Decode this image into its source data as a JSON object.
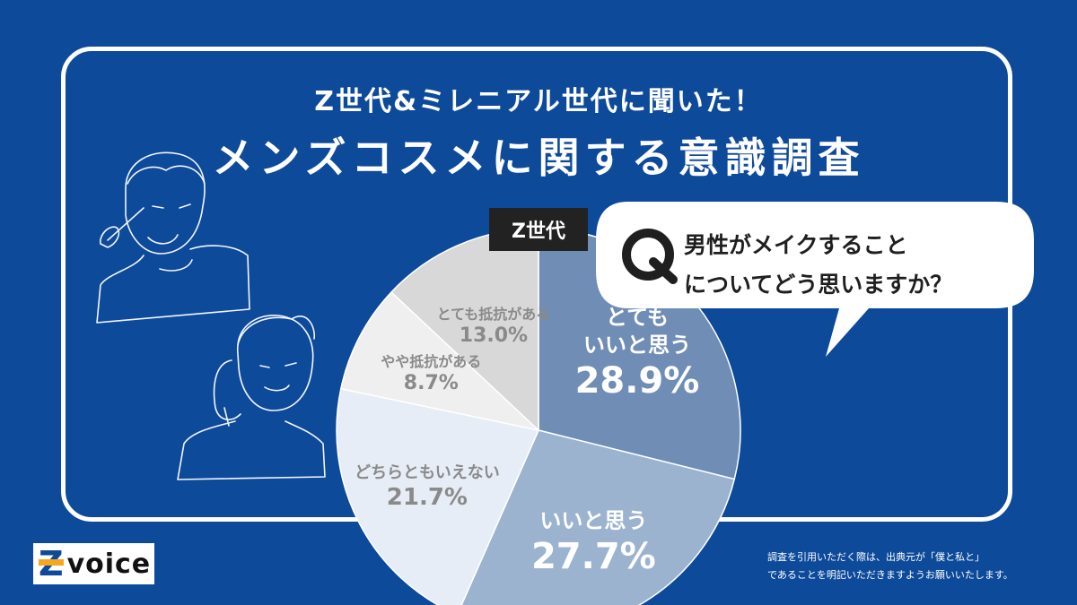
{
  "subtitle": "Z世代&ミレニアル世代に聞いた！",
  "title": "メンズコスメに関する意識調査",
  "tag": "Z世代",
  "question": {
    "mark": "Q",
    "line1": "男性がメイクすること",
    "line2": "についてどう思いますか？"
  },
  "logo": {
    "z": "Z",
    "word": "voice"
  },
  "note": {
    "line1": "調査を引用いただく際は、出典元が「僕と私と」",
    "line2": "であることを明記いただきますようお願いいたします。"
  },
  "colors": {
    "background": "#0d4a9a",
    "frame": "#ffffff",
    "slice_1": "#6f8db5",
    "slice_2": "#9bb3cf",
    "slice_3": "#e6edf6",
    "slice_4": "#efefef",
    "slice_5": "#d8d8d8"
  },
  "chart_data": {
    "type": "pie",
    "slices": [
      {
        "label_lines": [
          "とても",
          "いいと思う"
        ],
        "value": 28.9,
        "value_text": "28.9%"
      },
      {
        "label_lines": [
          "いいと思う"
        ],
        "value": 27.7,
        "value_text": "27.7%"
      },
      {
        "label_lines": [
          "どちらともいえない"
        ],
        "value": 21.7,
        "value_text": "21.7%"
      },
      {
        "label_lines": [
          "やや抵抗がある"
        ],
        "value": 8.7,
        "value_text": "8.7%"
      },
      {
        "label_lines": [
          "とても抵抗がある"
        ],
        "value": 13.0,
        "value_text": "13.0%"
      }
    ],
    "start": "12 o'clock",
    "direction": "clockwise"
  }
}
